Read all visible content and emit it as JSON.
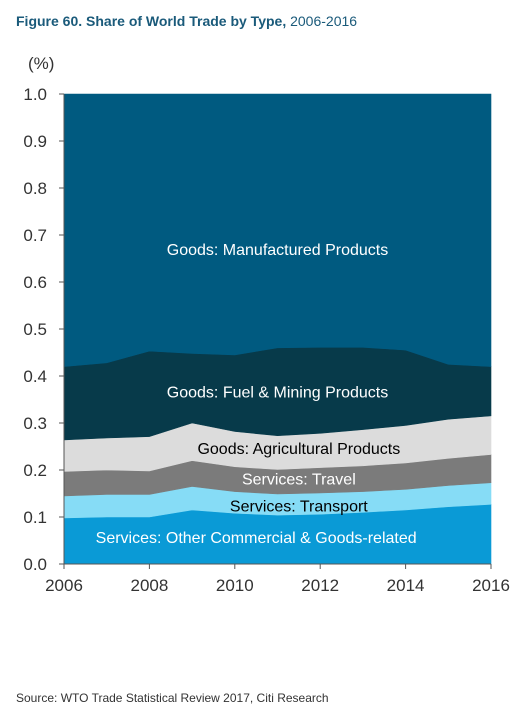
{
  "header": {
    "title_bold": "Figure 60. Share of  World Trade by Type,",
    "title_rest": " 2006-2016"
  },
  "footer": {
    "source": "Source: WTO Trade Statistical Review 2017, Citi Research"
  },
  "chart_data": {
    "type": "area",
    "stacked": true,
    "ylabel": "(%)",
    "xlim": [
      2006,
      2016
    ],
    "ylim": [
      0,
      1
    ],
    "x": [
      2006,
      2007,
      2008,
      2009,
      2010,
      2011,
      2012,
      2013,
      2014,
      2015,
      2016
    ],
    "x_ticks": [
      "2006",
      "2008",
      "2010",
      "2012",
      "2014",
      "2016"
    ],
    "y_ticks": [
      "0.0",
      "0.1",
      "0.2",
      "0.3",
      "0.4",
      "0.5",
      "0.6",
      "0.7",
      "0.8",
      "0.9",
      "1.0"
    ],
    "grid": false,
    "legend": "inline labels on areas",
    "series": [
      {
        "name": "Services: Other Commercial & Goods-related",
        "color": "#0a9ad6",
        "label_color": "#ffffff",
        "values": [
          0.098,
          0.1,
          0.1,
          0.115,
          0.108,
          0.104,
          0.106,
          0.11,
          0.115,
          0.122,
          0.127
        ]
      },
      {
        "name": "Services: Transport",
        "color": "#86dcf6",
        "label_color": "#000000",
        "values": [
          0.047,
          0.048,
          0.048,
          0.05,
          0.046,
          0.045,
          0.045,
          0.044,
          0.044,
          0.045,
          0.046
        ]
      },
      {
        "name": "Services: Travel",
        "color": "#7b7b7b",
        "label_color": "#ffffff",
        "values": [
          0.052,
          0.052,
          0.05,
          0.055,
          0.053,
          0.052,
          0.054,
          0.055,
          0.056,
          0.058,
          0.06
        ]
      },
      {
        "name": "Goods: Agricultural Products",
        "color": "#dcdcdc",
        "label_color": "#000000",
        "values": [
          0.067,
          0.068,
          0.073,
          0.08,
          0.075,
          0.072,
          0.073,
          0.077,
          0.08,
          0.083,
          0.082
        ]
      },
      {
        "name": "Goods: Fuel & Mining Products",
        "color": "#073a4a",
        "label_color": "#ffffff",
        "values": [
          0.156,
          0.16,
          0.182,
          0.148,
          0.163,
          0.187,
          0.183,
          0.175,
          0.16,
          0.117,
          0.105
        ]
      },
      {
        "name": "Goods: Manufactured Products",
        "color": "#005a80",
        "label_color": "#ffffff",
        "values": [
          0.58,
          0.572,
          0.547,
          0.552,
          0.555,
          0.54,
          0.539,
          0.539,
          0.545,
          0.575,
          0.58
        ]
      }
    ]
  }
}
